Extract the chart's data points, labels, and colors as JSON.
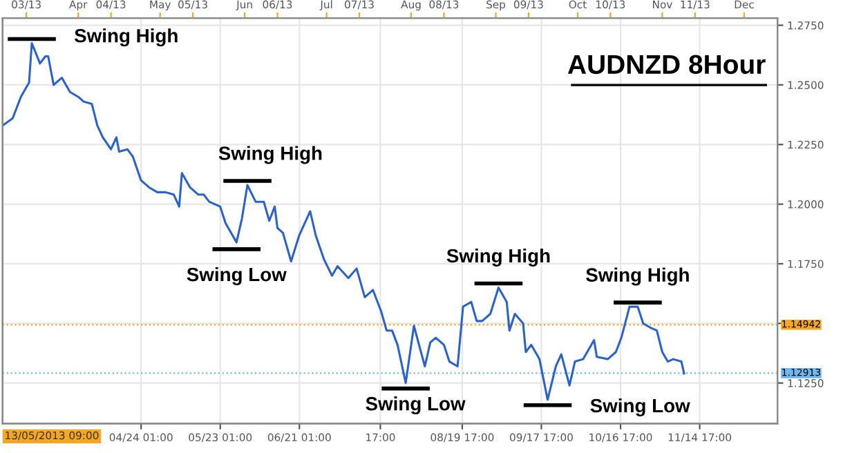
{
  "chart_data": {
    "type": "line",
    "title": "AUDNZD 8Hour",
    "series": [
      {
        "color": "#2a62c8",
        "x": [
          "2013-03-04T09:00",
          "2013-03-08",
          "2013-03-11",
          "2013-03-14",
          "2013-03-15",
          "2013-03-18",
          "2013-03-20",
          "2013-03-21",
          "2013-03-23",
          "2013-03-26",
          "2013-03-27",
          "2013-03-29",
          "2013-04-01",
          "2013-04-03",
          "2013-04-06",
          "2013-04-08",
          "2013-04-10",
          "2013-04-13",
          "2013-04-15",
          "2013-04-16",
          "2013-04-19",
          "2013-04-21",
          "2013-04-24",
          "2013-04-27",
          "2013-04-30",
          "2013-05-03",
          "2013-05-06",
          "2013-05-08",
          "2013-05-09",
          "2013-05-12",
          "2013-05-15",
          "2013-05-17",
          "2013-05-19",
          "2013-05-23",
          "2013-05-25",
          "2013-05-29",
          "2013-05-31",
          "2013-06-02",
          "2013-06-05",
          "2013-06-08",
          "2013-06-10",
          "2013-06-12",
          "2013-06-13",
          "2013-06-15",
          "2013-06-18",
          "2013-06-21",
          "2013-06-25",
          "2013-06-27",
          "2013-06-30",
          "2013-07-03",
          "2013-07-05",
          "2013-07-09",
          "2013-07-12",
          "2013-07-15",
          "2013-07-18",
          "2013-07-21",
          "2013-07-23",
          "2013-07-25",
          "2013-07-27",
          "2013-07-30",
          "2013-08-02",
          "2013-08-06",
          "2013-08-08",
          "2013-08-10",
          "2013-08-13",
          "2013-08-15",
          "2013-08-18",
          "2013-08-20",
          "2013-08-23",
          "2013-08-25",
          "2013-08-27",
          "2013-08-30",
          "2013-09-02",
          "2013-09-05",
          "2013-09-06",
          "2013-09-08",
          "2013-09-11",
          "2013-09-12",
          "2013-09-14",
          "2013-09-17",
          "2013-09-20",
          "2013-09-23",
          "2013-09-25",
          "2013-09-28",
          "2013-09-30",
          "2013-10-03",
          "2013-10-07",
          "2013-10-08",
          "2013-10-12",
          "2013-10-15",
          "2013-10-17",
          "2013-10-20",
          "2013-10-23",
          "2013-10-25",
          "2013-10-28",
          "2013-10-30",
          "2013-11-01",
          "2013-11-03",
          "2013-11-05",
          "2013-11-08",
          "2013-11-09"
        ],
        "values": [
          1.233,
          1.236,
          1.245,
          1.251,
          1.2675,
          1.259,
          1.262,
          1.262,
          1.25,
          1.253,
          1.251,
          1.247,
          1.245,
          1.243,
          1.242,
          1.233,
          1.228,
          1.223,
          1.228,
          1.222,
          1.223,
          1.22,
          1.21,
          1.207,
          1.205,
          1.205,
          1.204,
          1.199,
          1.213,
          1.207,
          1.204,
          1.204,
          1.201,
          1.199,
          1.192,
          1.184,
          1.194,
          1.208,
          1.201,
          1.201,
          1.193,
          1.199,
          1.19,
          1.188,
          1.176,
          1.187,
          1.197,
          1.187,
          1.177,
          1.17,
          1.174,
          1.169,
          1.173,
          1.161,
          1.164,
          1.155,
          1.147,
          1.147,
          1.141,
          1.125,
          1.149,
          1.132,
          1.142,
          1.144,
          1.141,
          1.134,
          1.132,
          1.157,
          1.159,
          1.151,
          1.151,
          1.154,
          1.165,
          1.159,
          1.147,
          1.154,
          1.15,
          1.138,
          1.141,
          1.135,
          1.118,
          1.132,
          1.137,
          1.124,
          1.134,
          1.135,
          1.143,
          1.136,
          1.135,
          1.138,
          1.144,
          1.157,
          1.157,
          1.15,
          1.148,
          1.147,
          1.138,
          1.134,
          1.135,
          1.134,
          1.129
        ]
      }
    ],
    "xlim": [
      "2013-03-04T07:00",
      "2013-12-13T05:00"
    ],
    "ylim": [
      1.108,
      1.278
    ],
    "xticks": [
      {
        "value": "2013-04-24T01:00",
        "label": "04/24 01:00"
      },
      {
        "value": "2013-05-23T01:00",
        "label": "05/23 01:00"
      },
      {
        "value": "2013-06-21T01:00",
        "label": "06/21 01:00"
      },
      {
        "value": "2013-07-20T17:00",
        "label": "17:00"
      },
      {
        "value": "2013-08-19T17:00",
        "label": "08/19 17:00"
      },
      {
        "value": "2013-09-17T17:00",
        "label": "09/17 17:00"
      },
      {
        "value": "2013-10-16T17:00",
        "label": "10/16 17:00"
      },
      {
        "value": "2013-11-14T17:00",
        "label": "11/14 17:00"
      }
    ],
    "x2lim": [
      "2013-03-04T07:00",
      "2013-12-13T05:00"
    ],
    "x2ticks": [
      {
        "value": "2013-03-13",
        "label": "03/13"
      },
      {
        "value": "2013-04-01",
        "label": "Apr"
      },
      {
        "value": "2013-04-13",
        "label": "04/13"
      },
      {
        "value": "2013-05-01",
        "label": "May"
      },
      {
        "value": "2013-05-13",
        "label": "05/13"
      },
      {
        "value": "2013-06-01",
        "label": "Jun"
      },
      {
        "value": "2013-06-13",
        "label": "06/13"
      },
      {
        "value": "2013-07-01",
        "label": "Jul"
      },
      {
        "value": "2013-07-13",
        "label": "07/13"
      },
      {
        "value": "2013-08-01",
        "label": "Aug"
      },
      {
        "value": "2013-08-13",
        "label": "08/13"
      },
      {
        "value": "2013-09-01",
        "label": "Sep"
      },
      {
        "value": "2013-09-13",
        "label": "09/13"
      },
      {
        "value": "2013-10-01",
        "label": "Oct"
      },
      {
        "value": "2013-10-13",
        "label": "10/13"
      },
      {
        "value": "2013-11-01",
        "label": "Nov"
      },
      {
        "value": "2013-11-13",
        "label": "11/13"
      },
      {
        "value": "2013-12-01",
        "label": "Dec"
      }
    ],
    "yticks": [
      {
        "value": 1.125,
        "label": "1.1250"
      },
      {
        "value": 1.15,
        "label": null
      },
      {
        "value": 1.175,
        "label": "1.1750"
      },
      {
        "value": 1.2,
        "label": "1.2000"
      },
      {
        "value": 1.225,
        "label": "1.2250"
      },
      {
        "value": 1.25,
        "label": "1.2500"
      },
      {
        "value": 1.275,
        "label": "1.2750"
      }
    ],
    "ref_lines": [
      {
        "axis": "y",
        "value": 1.14942,
        "label": "1.14942",
        "color": "#f5a623",
        "line_style": "dotted"
      },
      {
        "axis": "y",
        "value": 1.12913,
        "label": "1.12913",
        "color": "#6fb7ee",
        "line_style": "dotted"
      }
    ],
    "annotations": [
      {
        "text": "Swing High",
        "x": "2013-03-15",
        "y": 1.2675
      },
      {
        "text": "Swing High",
        "x": "2013-06-02",
        "y": 1.208
      },
      {
        "text": "Swing Low",
        "x": "2013-05-29",
        "y": 1.184
      },
      {
        "text": "Swing Low",
        "x": "2013-07-30",
        "y": 1.125
      },
      {
        "text": "Swing High",
        "x": "2013-09-02",
        "y": 1.165
      },
      {
        "text": "Swing Low",
        "x": "2013-09-20",
        "y": 1.118
      },
      {
        "text": "Swing High",
        "x": "2013-10-23",
        "y": 1.157
      },
      "13/05/2013 09:00"
    ],
    "grid": true,
    "marker": "none",
    "line_style": "solid"
  }
}
